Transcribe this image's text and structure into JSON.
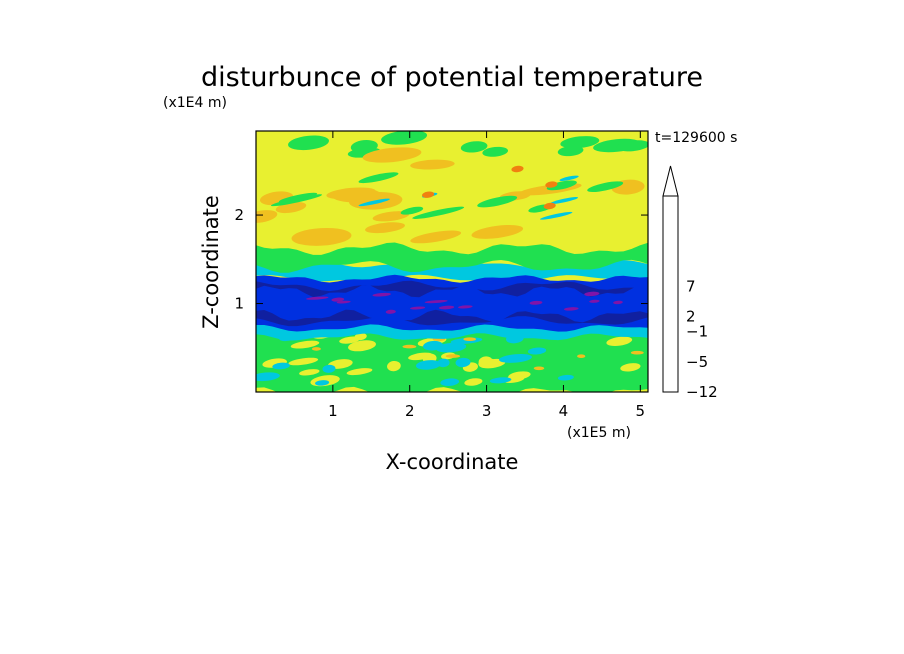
{
  "chart_data": {
    "type": "heatmap",
    "title": "disturbunce of potential temperature",
    "xlabel": "X-coordinate",
    "ylabel": "Z-coordinate",
    "x_unit": "(x1E5 m)",
    "y_unit": "(x1E4 m)",
    "time_label": "t=129600 s",
    "xlim": [
      0,
      5.1
    ],
    "ylim": [
      0,
      2.95
    ],
    "x_ticks": [
      1,
      2,
      3,
      4,
      5
    ],
    "y_ticks": [
      1,
      2
    ],
    "colorbar": {
      "extend": "max",
      "tick_labels": [
        {
          "level": 0,
          "label": "-12"
        },
        {
          "level": 2,
          "label": "-5"
        },
        {
          "level": 4,
          "label": "-1"
        },
        {
          "level": 5,
          "label": "2"
        },
        {
          "level": 7,
          "label": "7"
        }
      ],
      "colors": [
        "#e010a8",
        "#c8129c",
        "#8014a8",
        "#1020a0",
        "#0030e0",
        "#00c8e0",
        "#20e050",
        "#e8f030",
        "#f0c020",
        "#f08010",
        "#e83010",
        "#e86060",
        "#f4b8b8"
      ]
    },
    "bands": [
      {
        "z_min": 0.0,
        "z_max": 0.78,
        "description": "mixed green/cyan/yellow small-scale structures"
      },
      {
        "z_min": 0.78,
        "z_max": 1.3,
        "description": "strong negative layer (blue, darkest cores)"
      },
      {
        "z_min": 1.3,
        "z_max": 1.65,
        "description": "cyan to green transition"
      },
      {
        "z_min": 1.65,
        "z_max": 2.95,
        "description": "yellow with orange lenses and green streaks"
      }
    ]
  }
}
